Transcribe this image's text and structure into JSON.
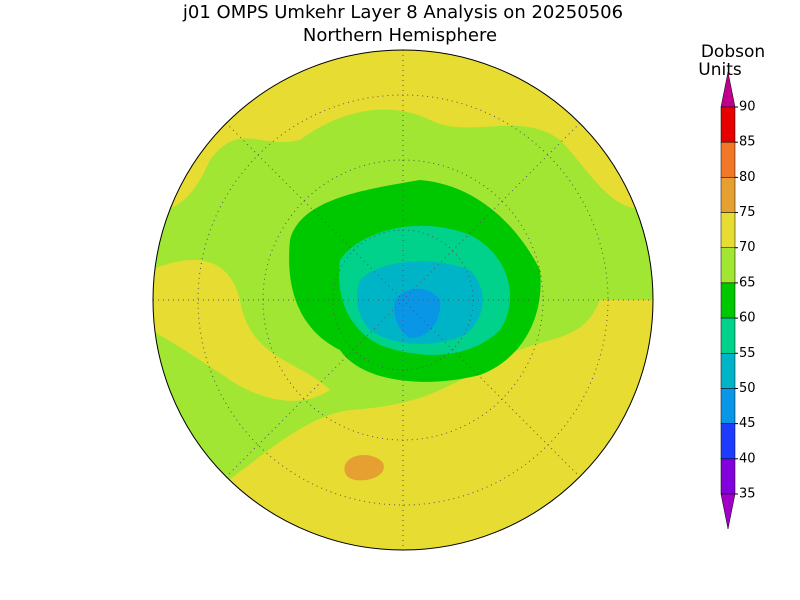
{
  "header": {
    "title": "j01 OMPS Umkehr Layer 8 Analysis on 20250506",
    "subtitle": "Northern Hemisphere"
  },
  "colorbar": {
    "title_lines": [
      "Dobson",
      "Units"
    ],
    "ticks": [
      90,
      85,
      80,
      75,
      70,
      65,
      60,
      55,
      50,
      45,
      40,
      35
    ],
    "colors": [
      "#c0008c",
      "#e60000",
      "#f07828",
      "#e6a032",
      "#e6dc32",
      "#a0e632",
      "#00c800",
      "#00d28c",
      "#00b4c8",
      "#0a96e6",
      "#1e3cff",
      "#8200dc",
      "#a000c8"
    ]
  }
}
